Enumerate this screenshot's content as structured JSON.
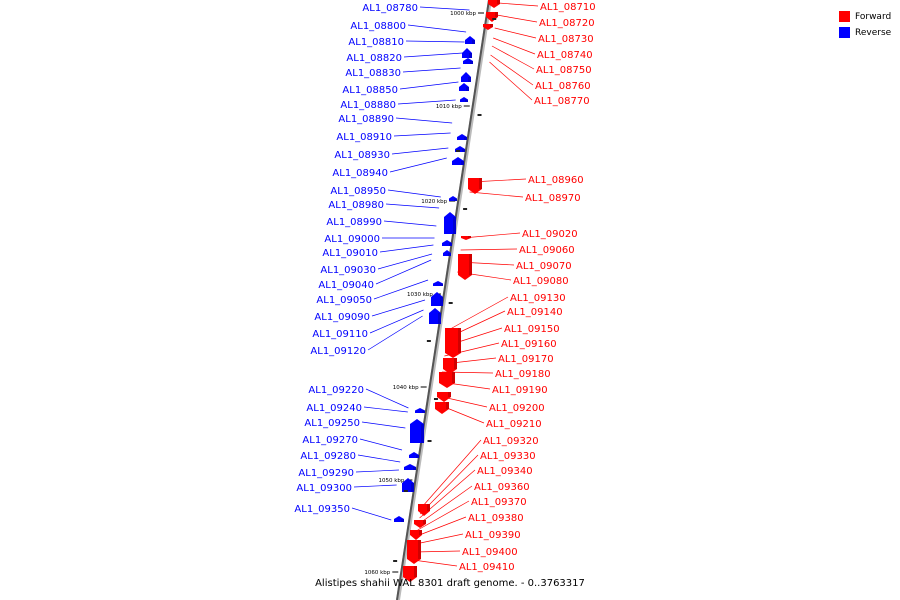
{
  "legend": {
    "forward": {
      "label": "Forward",
      "color": "#ff0000"
    },
    "reverse": {
      "label": "Reverse",
      "color": "#0000ff"
    }
  },
  "caption": "Alistipes shahii WAL 8301 draft genome. - 0..3763317",
  "ticks": [
    "1000 kbp",
    "1010 kbp",
    "1020 kbp",
    "1030 kbp",
    "1040 kbp",
    "1050 kbp",
    "1060 kbp"
  ],
  "genes_reverse": [
    "AL1_08780",
    "AL1_08800",
    "AL1_08810",
    "AL1_08820",
    "AL1_08830",
    "AL1_08850",
    "AL1_08880",
    "AL1_08890",
    "AL1_08910",
    "AL1_08930",
    "AL1_08940",
    "AL1_08950",
    "AL1_08980",
    "AL1_08990",
    "AL1_09000",
    "AL1_09010",
    "AL1_09030",
    "AL1_09040",
    "AL1_09050",
    "AL1_09090",
    "AL1_09110",
    "AL1_09120",
    "AL1_09220",
    "AL1_09240",
    "AL1_09250",
    "AL1_09270",
    "AL1_09280",
    "AL1_09290",
    "AL1_09300",
    "AL1_09350"
  ],
  "genes_forward": [
    "AL1_08710",
    "AL1_08720",
    "AL1_08730",
    "AL1_08740",
    "AL1_08750",
    "AL1_08760",
    "AL1_08770",
    "AL1_08960",
    "AL1_08970",
    "AL1_09020",
    "AL1_09060",
    "AL1_09070",
    "AL1_09080",
    "AL1_09130",
    "AL1_09140",
    "AL1_09150",
    "AL1_09160",
    "AL1_09170",
    "AL1_09180",
    "AL1_09190",
    "AL1_09200",
    "AL1_09210",
    "AL1_09320",
    "AL1_09330",
    "AL1_09340",
    "AL1_09360",
    "AL1_09370",
    "AL1_09380",
    "AL1_09390",
    "AL1_09400",
    "AL1_09410"
  ]
}
